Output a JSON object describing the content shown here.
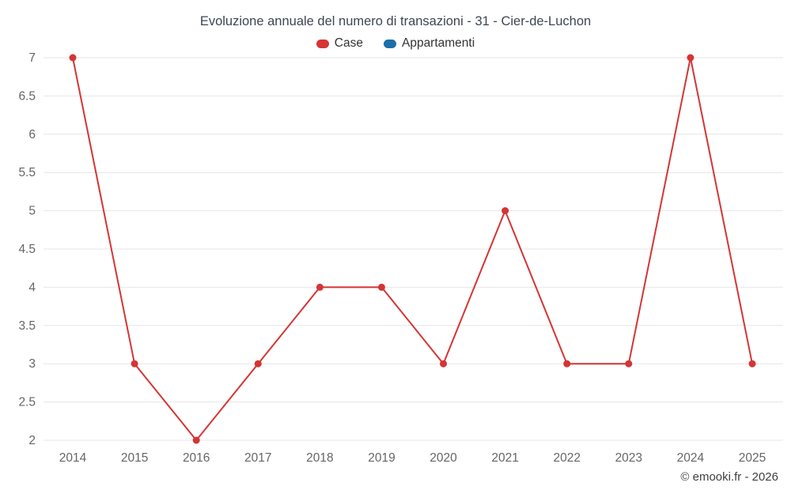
{
  "chart_data": {
    "type": "line",
    "title": "Evoluzione annuale del numero di transazioni - 31 - Cier-de-Luchon",
    "categories": [
      "2014",
      "2015",
      "2016",
      "2017",
      "2018",
      "2019",
      "2020",
      "2021",
      "2022",
      "2023",
      "2024",
      "2025"
    ],
    "series": [
      {
        "name": "Case",
        "color": "#d43535",
        "values": [
          7,
          3,
          2,
          3,
          4,
          4,
          3,
          5,
          3,
          3,
          7,
          3
        ]
      },
      {
        "name": "Appartamenti",
        "color": "#1c6fa8",
        "values": []
      }
    ],
    "xlabel": "",
    "ylabel": "",
    "ylim": [
      2,
      7
    ],
    "ytick_step": 0.5,
    "grid": true,
    "legend_position": "top",
    "colors": {
      "grid": "#e6e6e6",
      "axis_label": "#666666",
      "title": "#3d4653"
    }
  },
  "footer": {
    "credit": "© emooki.fr - 2026"
  }
}
